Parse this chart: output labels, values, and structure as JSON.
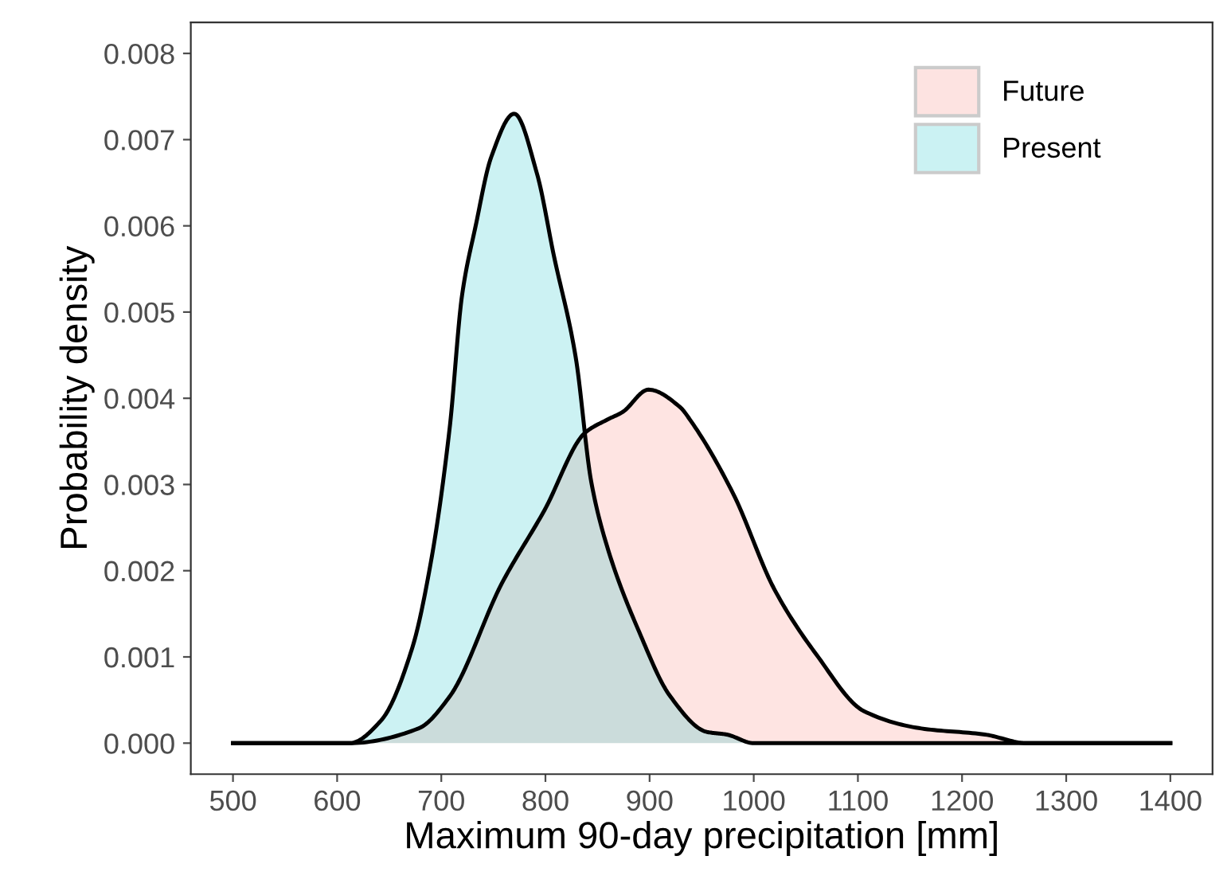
{
  "chart_data": {
    "type": "area",
    "xlabel": "Maximum 90-day precipitation [mm]",
    "ylabel": "Probability density",
    "xlim": [
      459.5,
      1440.5
    ],
    "xticks": [
      500,
      600,
      700,
      800,
      900,
      1000,
      1100,
      1200,
      1300,
      1400
    ],
    "ylim": [
      -0.00036,
      0.00836
    ],
    "yticks": [
      {
        "value": 0,
        "label": "0.000"
      },
      {
        "value": 0.001,
        "label": "0.001"
      },
      {
        "value": 0.002,
        "label": "0.002"
      },
      {
        "value": 0.003,
        "label": "0.003"
      },
      {
        "value": 0.004,
        "label": "0.004"
      },
      {
        "value": 0.005,
        "label": "0.005"
      },
      {
        "value": 0.006,
        "label": "0.006"
      },
      {
        "value": 0.007,
        "label": "0.007"
      },
      {
        "value": 0.008,
        "label": "0.008"
      }
    ],
    "grid": false,
    "legend": "top right",
    "series": [
      {
        "name": "Future",
        "color": "#f8766d",
        "x": [
          500,
          612,
          678,
          708,
          758,
          799,
          838,
          859,
          874,
          899,
          929,
          940,
          980,
          1020,
          1060,
          1106,
          1161,
          1222,
          1262,
          1400
        ],
        "values": [
          0,
          0,
          0.00017,
          0.00054,
          0.00185,
          0.0027,
          0.0036,
          0.00375,
          0.00384,
          0.0041,
          0.0039,
          0.00373,
          0.0029,
          0.00178,
          0.00103,
          0.00037,
          0.00017,
          0.0001,
          0,
          0
        ]
      },
      {
        "name": "Present",
        "color": "#00bfc4",
        "x": [
          500,
          577,
          612,
          642,
          672,
          690,
          708,
          720,
          733,
          748,
          770,
          792,
          808,
          829,
          844,
          859,
          890,
          920,
          955,
          974,
          1000,
          1400
        ],
        "values": [
          0,
          0,
          0,
          0.00026,
          0.0011,
          0.0021,
          0.00365,
          0.0052,
          0.006,
          0.0068,
          0.0073,
          0.0066,
          0.00566,
          0.00448,
          0.00303,
          0.00229,
          0.00129,
          0.00054,
          0.00013,
          0.0001,
          0,
          0
        ]
      }
    ]
  }
}
